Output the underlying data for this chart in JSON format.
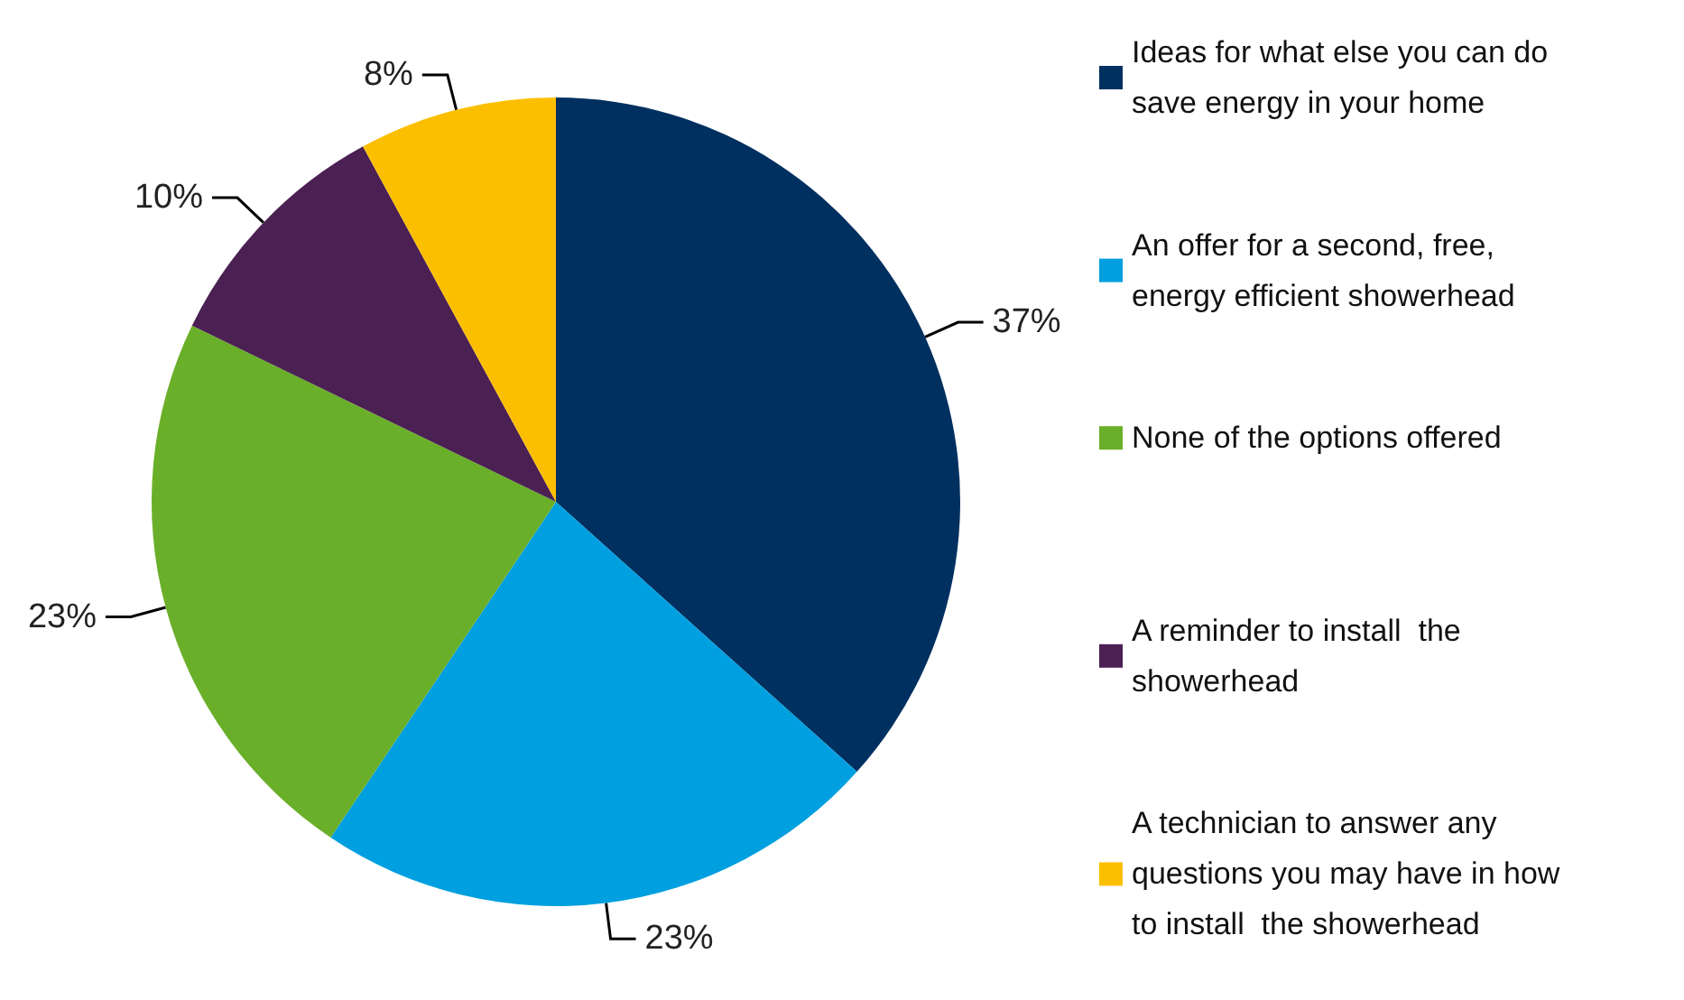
{
  "chart_data": {
    "type": "pie",
    "categories": [
      "Ideas for what else you can do save energy in your home",
      "An offer for a second, free, energy efficient showerhead",
      "None of the options offered",
      "A reminder to install  the showerhead",
      "A technician to answer any questions you may have in how to install  the showerhead"
    ],
    "values": [
      37,
      23,
      23,
      10,
      8
    ],
    "colors": [
      "#003060",
      "#009fdf",
      "#6aaf29",
      "#4b2053",
      "#fcbf00"
    ],
    "value_labels": [
      "37%",
      "23%",
      "23%",
      "10%",
      "8%"
    ],
    "legend": "right"
  }
}
